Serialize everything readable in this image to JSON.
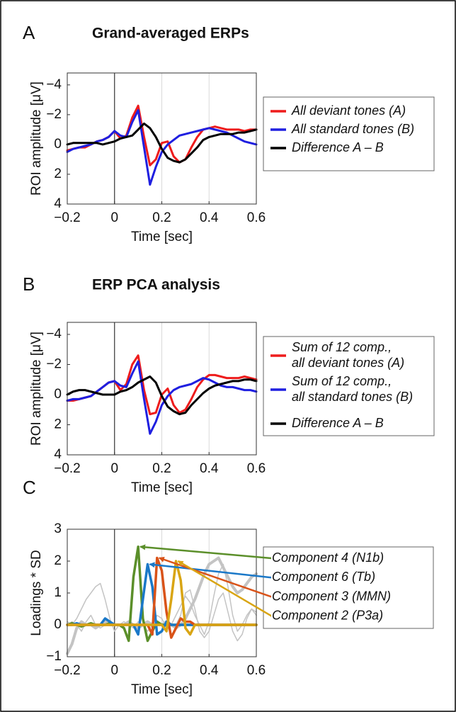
{
  "chart_data": [
    {
      "type": "line",
      "panel": "A",
      "title": "Grand-averaged ERPs",
      "xlabel": "Time [sec]",
      "ylabel": "ROI amplitude [μV]",
      "x": [
        -0.2,
        -0.175,
        -0.15,
        -0.125,
        -0.1,
        -0.075,
        -0.05,
        -0.025,
        0,
        0.025,
        0.05,
        0.075,
        0.1,
        0.125,
        0.15,
        0.175,
        0.2,
        0.225,
        0.25,
        0.275,
        0.3,
        0.325,
        0.35,
        0.375,
        0.4,
        0.425,
        0.45,
        0.475,
        0.5,
        0.525,
        0.55,
        0.575,
        0.6
      ],
      "series": [
        {
          "name": "All deviant tones (A)",
          "color": "#ee1c1c",
          "width": 3,
          "values": [
            0.4,
            0.3,
            0.2,
            0.2,
            0.0,
            -0.2,
            -0.3,
            -0.5,
            -0.9,
            -0.4,
            -0.6,
            -1.8,
            -2.6,
            -0.5,
            1.4,
            1.0,
            -0.1,
            -0.2,
            0.8,
            1.2,
            1.0,
            0.2,
            -0.5,
            -1.0,
            -1.1,
            -1.2,
            -1.1,
            -1.0,
            -1.0,
            -1.0,
            -0.9,
            -1.0,
            -1.0
          ]
        },
        {
          "name": "All standard tones (B)",
          "color": "#1f1fe0",
          "width": 3,
          "values": [
            0.5,
            0.3,
            0.2,
            0.1,
            0.0,
            -0.2,
            -0.3,
            -0.5,
            -0.9,
            -0.6,
            -0.5,
            -1.5,
            -2.3,
            0.2,
            2.7,
            1.5,
            0.5,
            0.0,
            -0.3,
            -0.6,
            -0.7,
            -0.8,
            -0.9,
            -1.0,
            -1.1,
            -1.0,
            -0.9,
            -0.8,
            -0.6,
            -0.4,
            -0.2,
            -0.1,
            0.0
          ]
        },
        {
          "name": "Difference A – B",
          "color": "#000000",
          "width": 3,
          "values": [
            0.0,
            -0.1,
            -0.1,
            -0.1,
            -0.1,
            -0.1,
            0.0,
            -0.1,
            -0.2,
            -0.4,
            -0.5,
            -0.6,
            -1.0,
            -1.4,
            -1.1,
            -0.5,
            0.3,
            0.9,
            1.1,
            1.2,
            1.0,
            0.6,
            0.2,
            -0.3,
            -0.5,
            -0.6,
            -0.7,
            -0.7,
            -0.7,
            -0.8,
            -0.8,
            -0.9,
            -1.0
          ]
        }
      ],
      "xlim": [
        -0.2,
        0.6
      ],
      "ylim": [
        -4.8,
        4
      ],
      "y_inverted": true,
      "xticks": [
        {
          "value": -0.2,
          "label": "−0.2"
        },
        0,
        0.2,
        0.4,
        0.6
      ],
      "yticks": [
        {
          "value": -4,
          "label": "−4"
        },
        {
          "value": -2,
          "label": "−2"
        },
        0,
        2,
        4
      ],
      "grid": "x",
      "zero_line": true,
      "legend": "right"
    },
    {
      "type": "line",
      "panel": "B",
      "title": "ERP PCA  analysis",
      "xlabel": "Time [sec]",
      "ylabel": "ROI amplitude [μV]",
      "x": [
        -0.2,
        -0.175,
        -0.15,
        -0.125,
        -0.1,
        -0.075,
        -0.05,
        -0.025,
        0,
        0.025,
        0.05,
        0.075,
        0.1,
        0.125,
        0.15,
        0.175,
        0.2,
        0.225,
        0.25,
        0.275,
        0.3,
        0.325,
        0.35,
        0.375,
        0.4,
        0.425,
        0.45,
        0.475,
        0.5,
        0.525,
        0.55,
        0.575,
        0.6
      ],
      "series": [
        {
          "name": "Sum of 12 comp.,\nall deviant tones (A)",
          "color": "#ee1c1c",
          "width": 3,
          "values": [
            0.4,
            0.4,
            0.3,
            0.2,
            0.1,
            -0.2,
            -0.5,
            -0.8,
            -0.9,
            -0.3,
            -0.7,
            -2.0,
            -2.6,
            -0.3,
            1.3,
            1.2,
            0.0,
            -0.4,
            0.7,
            1.2,
            1.0,
            0.3,
            -0.5,
            -1.0,
            -1.3,
            -1.3,
            -1.2,
            -1.1,
            -1.1,
            -1.1,
            -1.2,
            -1.1,
            -1.0
          ]
        },
        {
          "name": "Sum of 12 comp.,\nall standard tones (B)",
          "color": "#1f1fe0",
          "width": 3,
          "values": [
            0.4,
            0.3,
            0.3,
            0.2,
            0.1,
            -0.2,
            -0.5,
            -0.8,
            -0.9,
            -0.6,
            -0.5,
            -1.4,
            -2.2,
            0.3,
            2.6,
            1.8,
            0.7,
            0.1,
            -0.3,
            -0.5,
            -0.6,
            -0.7,
            -0.9,
            -1.1,
            -1.0,
            -0.8,
            -0.6,
            -0.5,
            -0.5,
            -0.4,
            -0.3,
            -0.3,
            -0.2
          ]
        },
        {
          "name": "Difference A – B",
          "color": "#000000",
          "width": 3,
          "values": [
            0.0,
            -0.2,
            -0.3,
            -0.3,
            -0.2,
            -0.1,
            0.0,
            0.0,
            0.0,
            -0.2,
            -0.3,
            -0.5,
            -0.8,
            -1.0,
            -1.2,
            -0.8,
            0.1,
            0.8,
            1.1,
            1.3,
            1.2,
            0.7,
            0.3,
            -0.1,
            -0.4,
            -0.6,
            -0.7,
            -0.8,
            -0.9,
            -0.9,
            -1.0,
            -1.0,
            -0.9
          ]
        }
      ],
      "xlim": [
        -0.2,
        0.6
      ],
      "ylim": [
        -4.8,
        4
      ],
      "y_inverted": true,
      "xticks": [
        {
          "value": -0.2,
          "label": "−0.2"
        },
        0,
        0.2,
        0.4,
        0.6
      ],
      "yticks": [
        {
          "value": -4,
          "label": "−4"
        },
        {
          "value": -2,
          "label": "−2"
        },
        0,
        2,
        4
      ],
      "grid": "x",
      "zero_line": true,
      "legend": "right"
    },
    {
      "type": "line",
      "panel": "C",
      "xlabel": "Time [sec]",
      "ylabel": "Loadings * SD",
      "x": [
        -0.2,
        -0.18,
        -0.16,
        -0.14,
        -0.12,
        -0.1,
        -0.08,
        -0.06,
        -0.04,
        -0.02,
        0,
        0.02,
        0.04,
        0.06,
        0.08,
        0.1,
        0.12,
        0.14,
        0.16,
        0.18,
        0.2,
        0.22,
        0.24,
        0.26,
        0.28,
        0.3,
        0.32,
        0.34,
        0.36,
        0.38,
        0.4,
        0.42,
        0.44,
        0.46,
        0.48,
        0.5,
        0.52,
        0.54,
        0.56,
        0.58,
        0.6
      ],
      "series": [
        {
          "color": "#c4c4c4",
          "width": 4,
          "values": [
            -0.9,
            -0.6,
            -0.1,
            0.1,
            0,
            0,
            -0.1,
            0,
            0.1,
            0,
            0,
            0,
            0,
            0.1,
            0,
            -0.1,
            0,
            0.1,
            0,
            0,
            0,
            0.1,
            0,
            -0.1,
            0,
            0.2,
            0.5,
            0.8,
            1.2,
            1.6,
            1.9,
            2.0,
            2.1,
            1.8,
            1.5,
            1.2,
            1.0,
            1.1,
            1.3,
            1.5,
            1.6
          ]
        },
        {
          "color": "#c4c4c4",
          "width": 1.5,
          "values": [
            0.1,
            0,
            0.2,
            0.5,
            0.8,
            1.0,
            1.2,
            1.3,
            0.8,
            0.2,
            -0.2,
            0,
            0.1,
            0,
            -0.1,
            0.1,
            0,
            -0.2,
            0,
            0.3,
            0.2,
            -0.1,
            0,
            0.3,
            0.6,
            0.9,
            0.7,
            0.3,
            0,
            -0.3,
            0.1,
            0.9,
            1.6,
            1.9,
            1.2,
            0.3,
            -0.2,
            0,
            0.3,
            0.5,
            0.4
          ]
        },
        {
          "color": "#c4c4c4",
          "width": 1.5,
          "values": [
            0,
            0.1,
            0,
            -0.2,
            0.1,
            0.3,
            0,
            -0.1,
            0,
            0.1,
            0,
            0,
            0,
            0,
            0,
            0,
            0,
            0,
            0,
            0,
            0,
            0,
            0,
            0,
            0.3,
            1.0,
            1.1,
            0.5,
            -0.2,
            -0.4,
            -0.2,
            0.3,
            0.8,
            1.0,
            0.4,
            -0.2,
            -0.5,
            -0.3,
            0.2,
            0.5,
            0.3
          ]
        },
        {
          "name": "Component 4 (N1b)",
          "color": "#5b8f2a",
          "width": 3.5,
          "values": [
            0,
            0.05,
            0,
            -0.05,
            0,
            0.05,
            0,
            0,
            0,
            0.05,
            0,
            0,
            -0.1,
            -0.5,
            1.5,
            2.45,
            0.2,
            -0.5,
            -0.2,
            0.1,
            0,
            0,
            0,
            0,
            0,
            0,
            0,
            0,
            0,
            0,
            0,
            0,
            0,
            0,
            0,
            0,
            0,
            0,
            0,
            0,
            0
          ]
        },
        {
          "name": "Component 6 (Tb)",
          "color": "#1a78c8",
          "width": 3.5,
          "values": [
            0,
            0,
            0.05,
            0,
            0,
            0,
            0,
            0,
            0.2,
            0.1,
            0,
            0,
            0,
            0,
            0,
            -0.3,
            0.8,
            1.9,
            1.2,
            -0.3,
            -0.2,
            0.1,
            0,
            0,
            0,
            0,
            0,
            0,
            0,
            0,
            0,
            0,
            0,
            0,
            0,
            0,
            0,
            0,
            0,
            0,
            0
          ]
        },
        {
          "name": "Component 3 (MMN)",
          "color": "#d95319",
          "width": 3.5,
          "values": [
            0,
            0,
            0,
            0,
            0,
            0,
            0,
            0,
            0,
            0,
            0,
            0,
            0,
            0,
            0,
            0,
            0,
            0,
            -0.3,
            2.1,
            1.7,
            0.4,
            -0.4,
            -0.1,
            0.2,
            0.1,
            0.1,
            0,
            0,
            0,
            0,
            0,
            0,
            0,
            0,
            0,
            0,
            0,
            0,
            0,
            0
          ]
        },
        {
          "name": "Component 2 (P3a)",
          "color": "#d9a514",
          "width": 3.5,
          "values": [
            0,
            0,
            0,
            0,
            0,
            0,
            0,
            0,
            0,
            0,
            0,
            0,
            0,
            0,
            0,
            0,
            0,
            0,
            0,
            0,
            0,
            -0.2,
            0.8,
            2.0,
            1.4,
            -0.1,
            -0.3,
            0,
            0,
            0,
            0,
            0,
            0,
            0,
            0,
            0,
            0,
            0,
            0,
            0,
            0
          ]
        }
      ],
      "xlim": [
        -0.2,
        0.6
      ],
      "ylim": [
        -1,
        3
      ],
      "y_inverted": false,
      "xticks": [
        {
          "value": -0.2,
          "label": "−0.2"
        },
        0,
        0.2,
        0.4,
        0.6
      ],
      "yticks": [
        {
          "value": -1,
          "label": "−1"
        },
        0,
        1,
        2,
        3
      ],
      "grid": "x",
      "zero_line": true,
      "legend": "right",
      "legend_style": "arrows"
    }
  ]
}
